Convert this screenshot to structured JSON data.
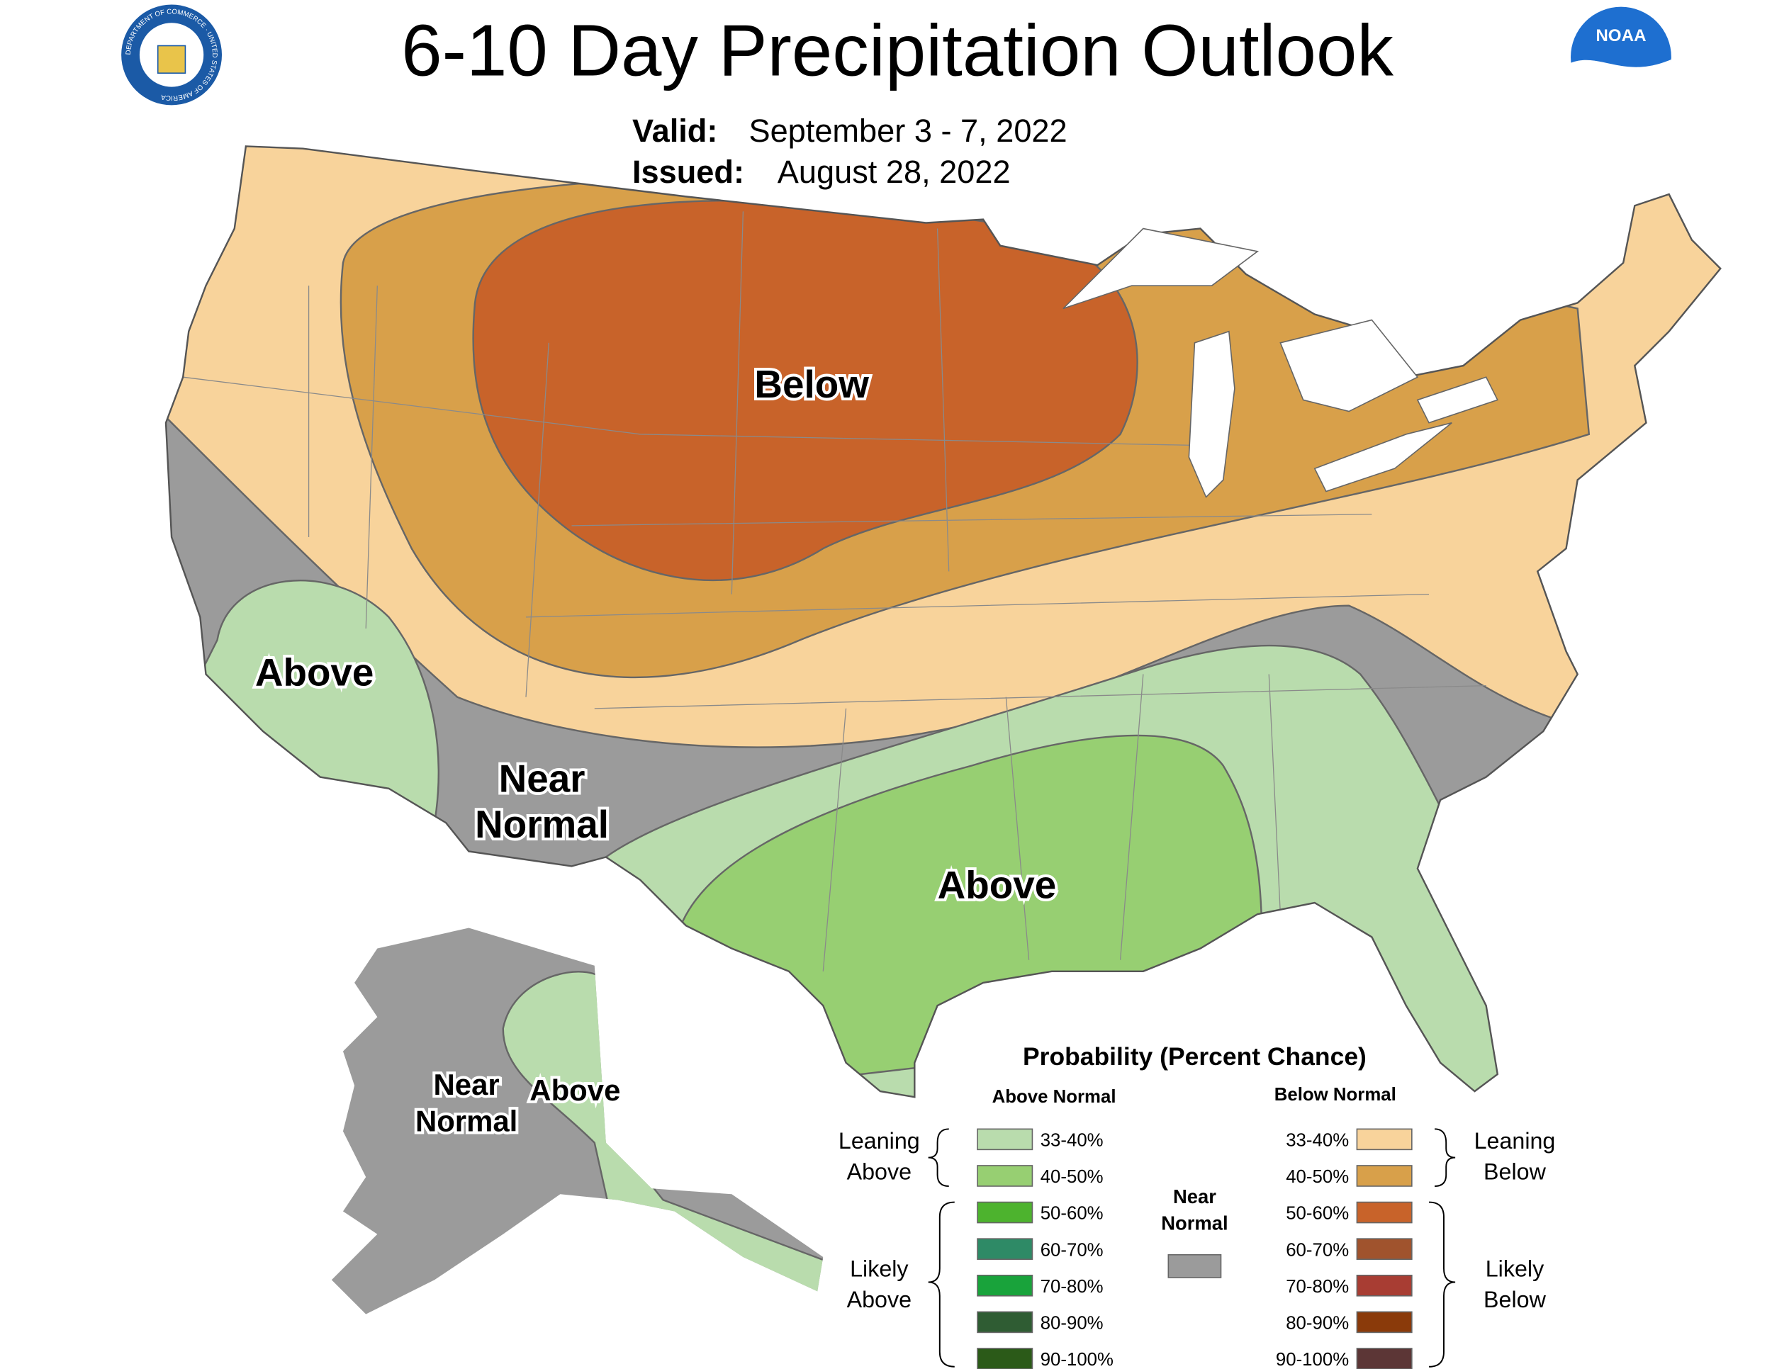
{
  "header": {
    "title": "6-10 Day Precipitation Outlook",
    "valid_label": "Valid:",
    "valid": "September 3 - 7, 2022",
    "issued_label": "Issued:",
    "issued": "August 28, 2022",
    "seal_text": "DEPARTMENT OF COMMERCE · UNITED STATES OF AMERICA",
    "noaa_logo": "NOAA"
  },
  "map_labels": {
    "below": "Below",
    "above_west": "Above",
    "near_normal": [
      "Near",
      "Normal"
    ],
    "above_south": "Above",
    "alaska_near_normal": [
      "Near",
      "Normal"
    ],
    "alaska_above": "Above"
  },
  "legend": {
    "title": "Probability (Percent Chance)",
    "above_header": "Above Normal",
    "below_header": "Below Normal",
    "above_items": [
      {
        "label": "33-40%",
        "color": "#b9dcad"
      },
      {
        "label": "40-50%",
        "color": "#97cf72"
      },
      {
        "label": "50-60%",
        "color": "#4db32e"
      },
      {
        "label": "60-70%",
        "color": "#2e8a66"
      },
      {
        "label": "70-80%",
        "color": "#19a33b"
      },
      {
        "label": "80-90%",
        "color": "#2f5c33"
      },
      {
        "label": "90-100%",
        "color": "#2b5a18"
      }
    ],
    "below_items": [
      {
        "label": "33-40%",
        "color": "#f8d39b"
      },
      {
        "label": "40-50%",
        "color": "#d8a04a"
      },
      {
        "label": "50-60%",
        "color": "#c8632a"
      },
      {
        "label": "60-70%",
        "color": "#a0532d"
      },
      {
        "label": "70-80%",
        "color": "#a83d33"
      },
      {
        "label": "80-90%",
        "color": "#8a3a0a"
      },
      {
        "label": "90-100%",
        "color": "#5c3636"
      }
    ],
    "near_normal": {
      "label": [
        "Near",
        "Normal"
      ],
      "color": "#9b9b9b"
    },
    "leaning_above": [
      "Leaning",
      "Above"
    ],
    "likely_above": [
      "Likely",
      "Above"
    ],
    "leaning_below": [
      "Leaning",
      "Below"
    ],
    "likely_below": [
      "Likely",
      "Below"
    ]
  }
}
